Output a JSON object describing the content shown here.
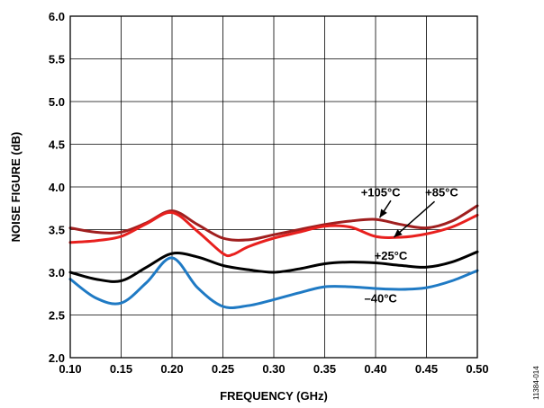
{
  "chart_data": {
    "type": "line",
    "xlabel": "FREQUENCY (GHz)",
    "ylabel": "NOISE FIGURE (dB)",
    "xlim": [
      0.1,
      0.5
    ],
    "ylim": [
      2.0,
      6.0
    ],
    "x_ticks": [
      "0.10",
      "0.15",
      "0.20",
      "0.25",
      "0.30",
      "0.35",
      "0.40",
      "0.45",
      "0.50"
    ],
    "y_ticks": [
      "2.0",
      "2.5",
      "3.0",
      "3.5",
      "4.0",
      "4.5",
      "5.0",
      "5.5",
      "6.0"
    ],
    "grid": true,
    "figure_id": "11384-014",
    "series": [
      {
        "name": "+105°C",
        "color": "#a01f1f",
        "x": [
          0.1,
          0.125,
          0.15,
          0.175,
          0.2,
          0.225,
          0.25,
          0.275,
          0.3,
          0.325,
          0.35,
          0.375,
          0.4,
          0.425,
          0.45,
          0.475,
          0.5
        ],
        "y": [
          3.52,
          3.47,
          3.47,
          3.58,
          3.72,
          3.56,
          3.4,
          3.38,
          3.44,
          3.5,
          3.56,
          3.6,
          3.62,
          3.56,
          3.52,
          3.6,
          3.78
        ]
      },
      {
        "name": "+85°C",
        "color": "#e8201e",
        "x": [
          0.1,
          0.125,
          0.15,
          0.175,
          0.2,
          0.225,
          0.25,
          0.26,
          0.275,
          0.3,
          0.325,
          0.35,
          0.375,
          0.4,
          0.425,
          0.45,
          0.475,
          0.5
        ],
        "y": [
          3.35,
          3.37,
          3.42,
          3.57,
          3.7,
          3.48,
          3.22,
          3.21,
          3.3,
          3.4,
          3.47,
          3.54,
          3.53,
          3.42,
          3.41,
          3.45,
          3.53,
          3.67
        ]
      },
      {
        "name": "+25°C",
        "color": "#000000",
        "x": [
          0.1,
          0.125,
          0.15,
          0.175,
          0.2,
          0.225,
          0.25,
          0.275,
          0.3,
          0.325,
          0.35,
          0.375,
          0.4,
          0.425,
          0.45,
          0.475,
          0.5
        ],
        "y": [
          3.0,
          2.92,
          2.9,
          3.06,
          3.22,
          3.18,
          3.08,
          3.03,
          3.0,
          3.04,
          3.1,
          3.12,
          3.11,
          3.08,
          3.06,
          3.12,
          3.24
        ]
      },
      {
        "name": "–40°C",
        "color": "#1f7ac4",
        "x": [
          0.1,
          0.125,
          0.15,
          0.175,
          0.2,
          0.225,
          0.25,
          0.275,
          0.3,
          0.325,
          0.35,
          0.375,
          0.4,
          0.425,
          0.45,
          0.475,
          0.5
        ],
        "y": [
          2.92,
          2.7,
          2.64,
          2.88,
          3.17,
          2.82,
          2.6,
          2.61,
          2.68,
          2.76,
          2.83,
          2.83,
          2.81,
          2.8,
          2.82,
          2.9,
          3.02
        ]
      }
    ],
    "annotations": [
      {
        "text": "+105°C",
        "x": 0.405,
        "y": 3.94
      },
      {
        "text": "+85°C",
        "x": 0.465,
        "y": 3.94
      },
      {
        "text": "+25°C",
        "x": 0.415,
        "y": 3.2
      },
      {
        "text": "–40°C",
        "x": 0.405,
        "y": 2.7
      }
    ]
  }
}
